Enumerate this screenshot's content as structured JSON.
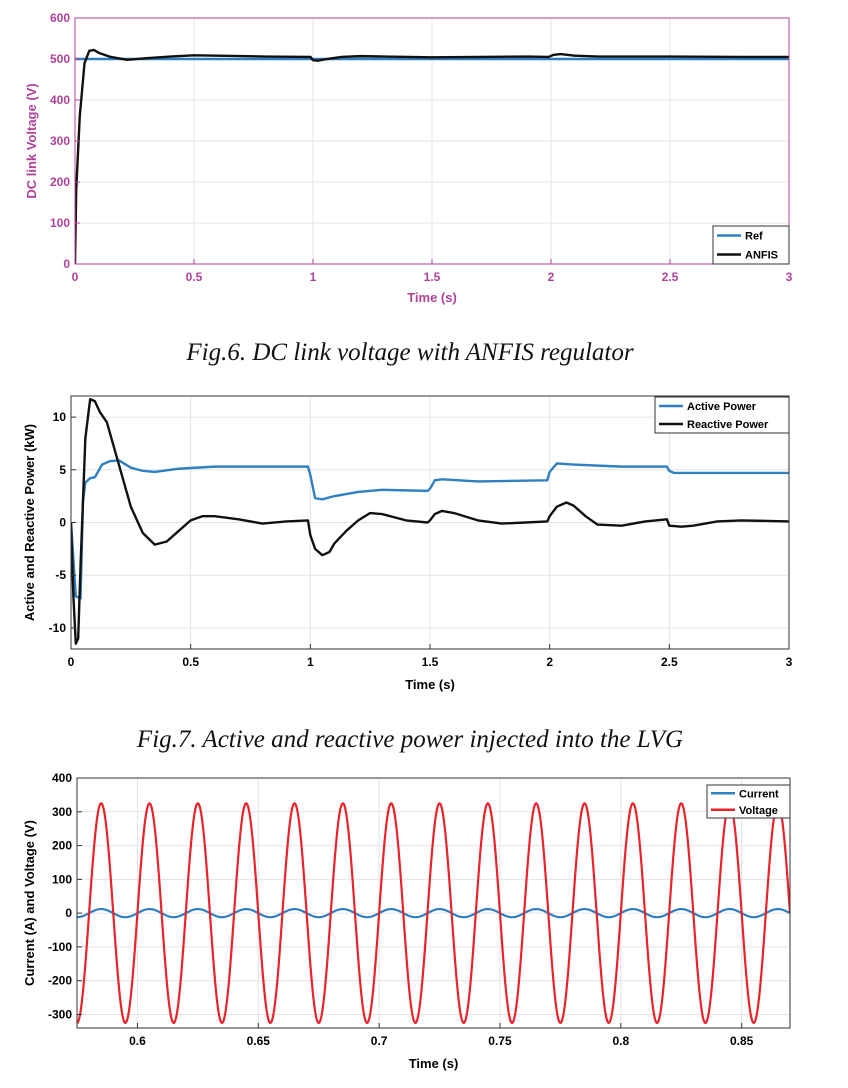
{
  "colors": {
    "ref": "#2f7fc1",
    "black": "#111111",
    "red": "#e8232a",
    "magenta": "#b0419a",
    "grid": "#e4e4e4"
  },
  "chart_data": [
    {
      "type": "line",
      "caption": "Fig.6. DC link voltage with ANFIS regulator",
      "xlabel": "Time (s)",
      "ylabel": "DC link Voltage (V)",
      "xlim": [
        0,
        3
      ],
      "ylim": [
        0,
        600
      ],
      "xticks": [
        0,
        0.5,
        1,
        1.5,
        2,
        2.5,
        3
      ],
      "xtick_labels": [
        "0",
        "0.5",
        "1",
        "1.5",
        "2",
        "2.5",
        "3"
      ],
      "yticks": [
        0,
        100,
        200,
        300,
        400,
        500,
        600
      ],
      "ytick_labels": [
        "0",
        "100",
        "200",
        "300",
        "400",
        "500",
        "600"
      ],
      "grid": true,
      "legend_position": "bottom-right",
      "series": [
        {
          "name": "Ref",
          "color": "#2f7fc1",
          "x": [
            0,
            3
          ],
          "y": [
            500,
            500
          ]
        },
        {
          "name": "ANFIS",
          "color": "#111111",
          "x": [
            0,
            0.005,
            0.02,
            0.04,
            0.06,
            0.08,
            0.1,
            0.15,
            0.22,
            0.3,
            0.4,
            0.5,
            0.6,
            0.8,
            0.99,
            1.0,
            1.02,
            1.06,
            1.12,
            1.2,
            1.3,
            1.5,
            1.7,
            1.9,
            1.99,
            2.01,
            2.04,
            2.1,
            2.2,
            2.5,
            2.8,
            3.0
          ],
          "y": [
            0,
            180,
            360,
            490,
            520,
            522,
            515,
            505,
            498,
            502,
            506,
            509,
            508,
            506,
            505,
            497,
            496,
            500,
            505,
            507,
            506,
            504,
            505,
            506,
            505,
            510,
            512,
            508,
            506,
            506,
            505,
            505
          ]
        }
      ]
    },
    {
      "type": "line",
      "caption": "Fig.7. Active and reactive power injected into the LVG",
      "xlabel": "Time (s)",
      "ylabel": "Active and Reactive Power (kW)",
      "xlim": [
        0,
        3
      ],
      "ylim": [
        -12,
        12
      ],
      "xticks": [
        0,
        0.5,
        1,
        1.5,
        2,
        2.5,
        3
      ],
      "xtick_labels": [
        "0",
        "0.5",
        "1",
        "1.5",
        "2",
        "2.5",
        "3"
      ],
      "yticks": [
        -10,
        -5,
        0,
        5,
        10
      ],
      "ytick_labels": [
        "-10",
        "-5",
        "0",
        "5",
        "10"
      ],
      "grid": true,
      "legend_position": "top-right",
      "series": [
        {
          "name": "Active Power",
          "color": "#2f7fc1",
          "x": [
            0,
            0.02,
            0.04,
            0.05,
            0.06,
            0.08,
            0.1,
            0.13,
            0.16,
            0.2,
            0.25,
            0.3,
            0.35,
            0.45,
            0.6,
            0.8,
            0.99,
            1.0,
            1.02,
            1.05,
            1.1,
            1.2,
            1.3,
            1.49,
            1.5,
            1.52,
            1.55,
            1.7,
            1.99,
            2.0,
            2.03,
            2.1,
            2.3,
            2.49,
            2.5,
            2.52,
            2.6,
            3.0
          ],
          "y": [
            0,
            -7,
            -7.2,
            2,
            3.8,
            4.2,
            4.3,
            5.5,
            5.8,
            5.9,
            5.2,
            4.9,
            4.8,
            5.1,
            5.3,
            5.3,
            5.3,
            4.5,
            2.3,
            2.2,
            2.5,
            2.9,
            3.1,
            3.0,
            3.2,
            4.0,
            4.1,
            3.9,
            4.0,
            4.8,
            5.6,
            5.5,
            5.3,
            5.3,
            4.9,
            4.7,
            4.7,
            4.7
          ]
        },
        {
          "name": "Reactive Power",
          "color": "#111111",
          "x": [
            0,
            0.01,
            0.02,
            0.03,
            0.04,
            0.06,
            0.08,
            0.1,
            0.12,
            0.15,
            0.2,
            0.25,
            0.3,
            0.35,
            0.4,
            0.45,
            0.5,
            0.55,
            0.6,
            0.7,
            0.8,
            0.9,
            0.99,
            1.0,
            1.02,
            1.05,
            1.08,
            1.1,
            1.15,
            1.2,
            1.25,
            1.3,
            1.4,
            1.49,
            1.5,
            1.52,
            1.55,
            1.6,
            1.7,
            1.8,
            1.9,
            1.99,
            2.0,
            2.03,
            2.07,
            2.1,
            2.15,
            2.2,
            2.3,
            2.4,
            2.49,
            2.5,
            2.55,
            2.6,
            2.7,
            2.8,
            3.0
          ],
          "y": [
            0,
            -7,
            -11.5,
            -11,
            -4,
            8,
            11.7,
            11.5,
            10.5,
            9.5,
            5.5,
            1.5,
            -1,
            -2.1,
            -1.8,
            -0.8,
            0.2,
            0.6,
            0.6,
            0.3,
            -0.1,
            0.1,
            0.2,
            -1.2,
            -2.5,
            -3.1,
            -2.8,
            -2.0,
            -0.8,
            0.2,
            0.9,
            0.8,
            0.2,
            0.0,
            0.2,
            0.8,
            1.1,
            0.9,
            0.2,
            -0.1,
            0.0,
            0.1,
            0.6,
            1.5,
            1.9,
            1.6,
            0.6,
            -0.2,
            -0.3,
            0.1,
            0.3,
            -0.3,
            -0.4,
            -0.3,
            0.1,
            0.2,
            0.1
          ]
        }
      ]
    },
    {
      "type": "line",
      "caption": "",
      "xlabel": "Time (s)",
      "ylabel": "Current (A) and Voltage (V)",
      "xlim": [
        0.575,
        0.87
      ],
      "ylim": [
        -340,
        400
      ],
      "xticks": [
        0.6,
        0.65,
        0.7,
        0.75,
        0.8,
        0.85
      ],
      "xtick_labels": [
        "0.6",
        "0.65",
        "0.7",
        "0.75",
        "0.8",
        "0.85"
      ],
      "yticks": [
        -300,
        -200,
        -100,
        0,
        100,
        200,
        300,
        400
      ],
      "ytick_labels": [
        "-300",
        "-200",
        "-100",
        "0",
        "100",
        "200",
        "300",
        "400"
      ],
      "grid": true,
      "legend_position": "top-right",
      "series": [
        {
          "name": "Current",
          "color": "#2f7fc1",
          "waveform": "sine",
          "amplitude": 12,
          "frequency_hz": 50,
          "peak_time": 0.585,
          "offset": 0
        },
        {
          "name": "Voltage",
          "color": "#e8232a",
          "waveform": "sine",
          "amplitude": 325,
          "frequency_hz": 50,
          "peak_time": 0.585,
          "offset": 0
        }
      ]
    }
  ]
}
